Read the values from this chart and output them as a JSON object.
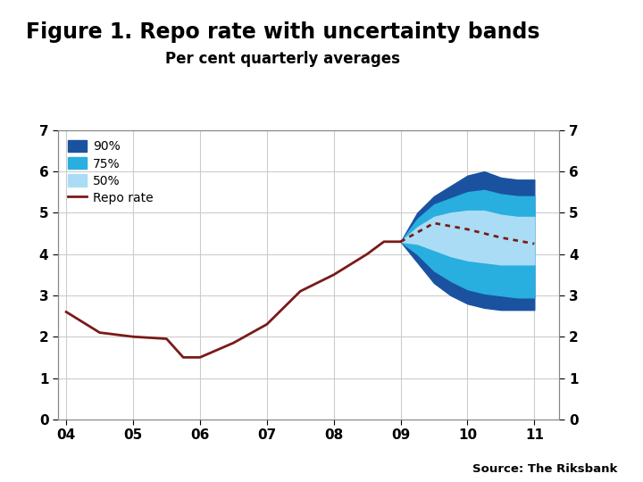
{
  "title": "Figure 1. Repo rate with uncertainty bands",
  "subtitle": "Per cent quarterly averages",
  "source": "Source: The Riksbank",
  "title_fontsize": 17,
  "subtitle_fontsize": 12,
  "ylim": [
    0,
    7
  ],
  "yticks": [
    0,
    1,
    2,
    3,
    4,
    5,
    6,
    7
  ],
  "xtick_labels": [
    "04",
    "05",
    "06",
    "07",
    "08",
    "09",
    "10",
    "11"
  ],
  "xtick_positions": [
    0,
    4,
    8,
    12,
    16,
    20,
    24,
    28
  ],
  "xlim": [
    -0.5,
    29.5
  ],
  "color_90": "#1a52a0",
  "color_75": "#29aee0",
  "color_50": "#aaddf5",
  "color_repo": "#7a1a1a",
  "bg_color": "#ffffff",
  "footer_color": "#1a4f8a",
  "grid_color": "#cccccc",
  "logo_color": "#1a4f8a",
  "repo_solid": [
    [
      0,
      2.6
    ],
    [
      2,
      2.1
    ],
    [
      4,
      2.0
    ],
    [
      6,
      1.95
    ],
    [
      7,
      1.5
    ],
    [
      8,
      1.5
    ],
    [
      10,
      1.85
    ],
    [
      12,
      2.3
    ],
    [
      14,
      3.1
    ],
    [
      16,
      3.5
    ],
    [
      18,
      4.0
    ],
    [
      19,
      4.3
    ],
    [
      20,
      4.3
    ]
  ],
  "repo_dashed": [
    [
      20,
      4.3
    ],
    [
      22,
      4.75
    ],
    [
      24,
      4.6
    ],
    [
      26,
      4.4
    ],
    [
      28,
      4.25
    ]
  ],
  "band_90_upper": [
    [
      20,
      4.3
    ],
    [
      21,
      5.0
    ],
    [
      22,
      5.4
    ],
    [
      23,
      5.65
    ],
    [
      24,
      5.9
    ],
    [
      25,
      6.0
    ],
    [
      26,
      5.85
    ],
    [
      27,
      5.8
    ],
    [
      28,
      5.8
    ]
  ],
  "band_90_lower": [
    [
      20,
      4.3
    ],
    [
      21,
      3.8
    ],
    [
      22,
      3.3
    ],
    [
      23,
      3.0
    ],
    [
      24,
      2.8
    ],
    [
      25,
      2.7
    ],
    [
      26,
      2.65
    ],
    [
      27,
      2.65
    ],
    [
      28,
      2.65
    ]
  ],
  "band_75_upper": [
    [
      20,
      4.3
    ],
    [
      21,
      4.85
    ],
    [
      22,
      5.2
    ],
    [
      23,
      5.35
    ],
    [
      24,
      5.5
    ],
    [
      25,
      5.55
    ],
    [
      26,
      5.45
    ],
    [
      27,
      5.4
    ],
    [
      28,
      5.4
    ]
  ],
  "band_75_lower": [
    [
      20,
      4.3
    ],
    [
      21,
      4.0
    ],
    [
      22,
      3.6
    ],
    [
      23,
      3.35
    ],
    [
      24,
      3.15
    ],
    [
      25,
      3.05
    ],
    [
      26,
      3.0
    ],
    [
      27,
      2.95
    ],
    [
      28,
      2.95
    ]
  ],
  "band_50_upper": [
    [
      20,
      4.3
    ],
    [
      21,
      4.65
    ],
    [
      22,
      4.9
    ],
    [
      23,
      5.0
    ],
    [
      24,
      5.05
    ],
    [
      25,
      5.05
    ],
    [
      26,
      4.95
    ],
    [
      27,
      4.9
    ],
    [
      28,
      4.9
    ]
  ],
  "band_50_lower": [
    [
      20,
      4.3
    ],
    [
      21,
      4.25
    ],
    [
      22,
      4.1
    ],
    [
      23,
      3.95
    ],
    [
      24,
      3.85
    ],
    [
      25,
      3.8
    ],
    [
      26,
      3.75
    ],
    [
      27,
      3.75
    ],
    [
      28,
      3.75
    ]
  ]
}
